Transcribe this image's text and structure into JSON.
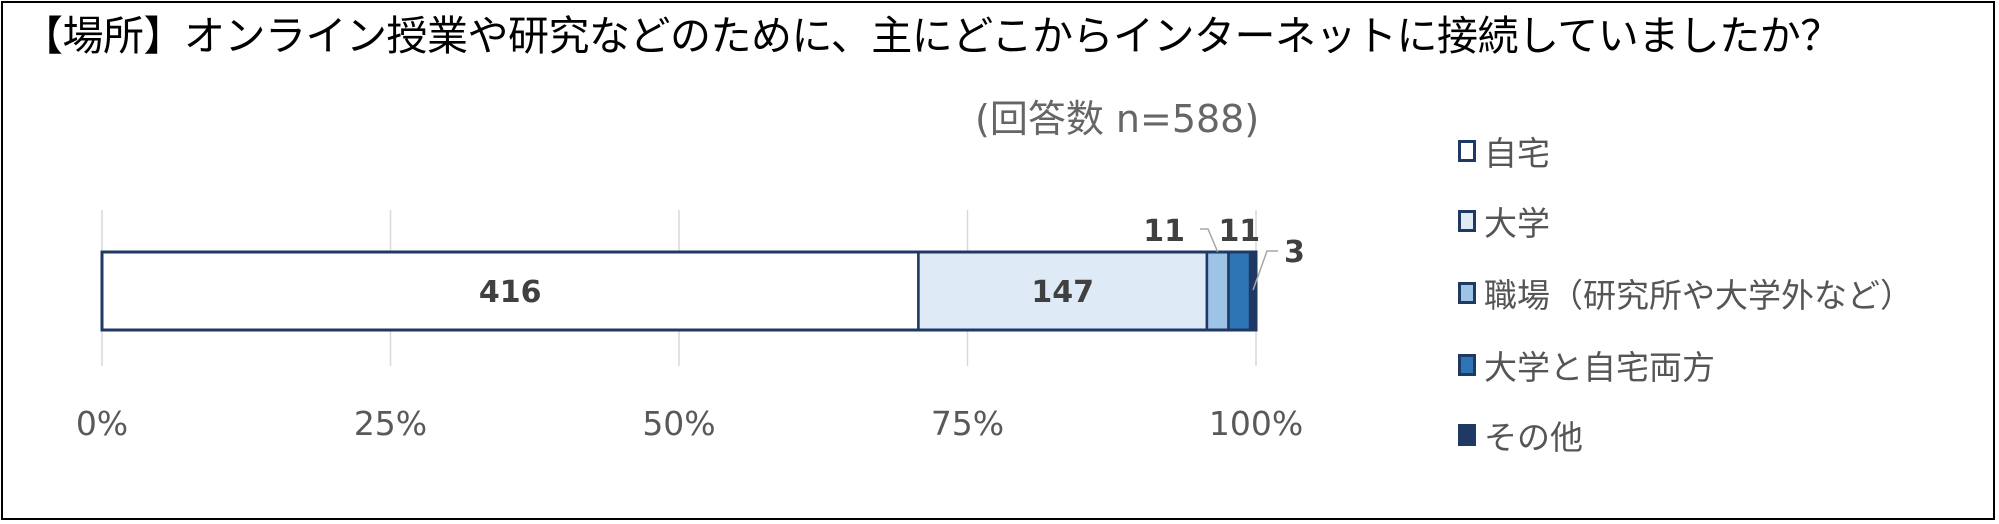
{
  "title": "【場所】オンライン授業や研究などのために、主にどこからインターネットに接続していましたか？",
  "subtitle": "(回答数 n=588)",
  "chart_data": {
    "type": "bar",
    "orientation": "horizontal",
    "stacked": "percent",
    "title": "【場所】オンライン授業や研究などのために、主にどこからインターネットに接続していましたか？",
    "subtitle": "(回答数 n=588)",
    "series": [
      {
        "name": "自宅",
        "values": [
          416
        ],
        "color": "#ffffff"
      },
      {
        "name": "大学",
        "values": [
          147
        ],
        "color": "#deebf7"
      },
      {
        "name": "職場（研究所や大学外など）",
        "values": [
          11
        ],
        "color": "#9dc3e6"
      },
      {
        "name": "大学と自宅両方",
        "values": [
          11
        ],
        "color": "#2e75b6"
      },
      {
        "name": "その他",
        "values": [
          3
        ],
        "color": "#1f3864"
      }
    ],
    "border_color": "#1f3864",
    "xlim": [
      0,
      100
    ],
    "x_ticks": [
      "0%",
      "25%",
      "50%",
      "75%",
      "100%"
    ],
    "grid": true,
    "legend_position": "right",
    "data_labels": [
      "416",
      "147",
      "11",
      "11",
      "3"
    ]
  }
}
